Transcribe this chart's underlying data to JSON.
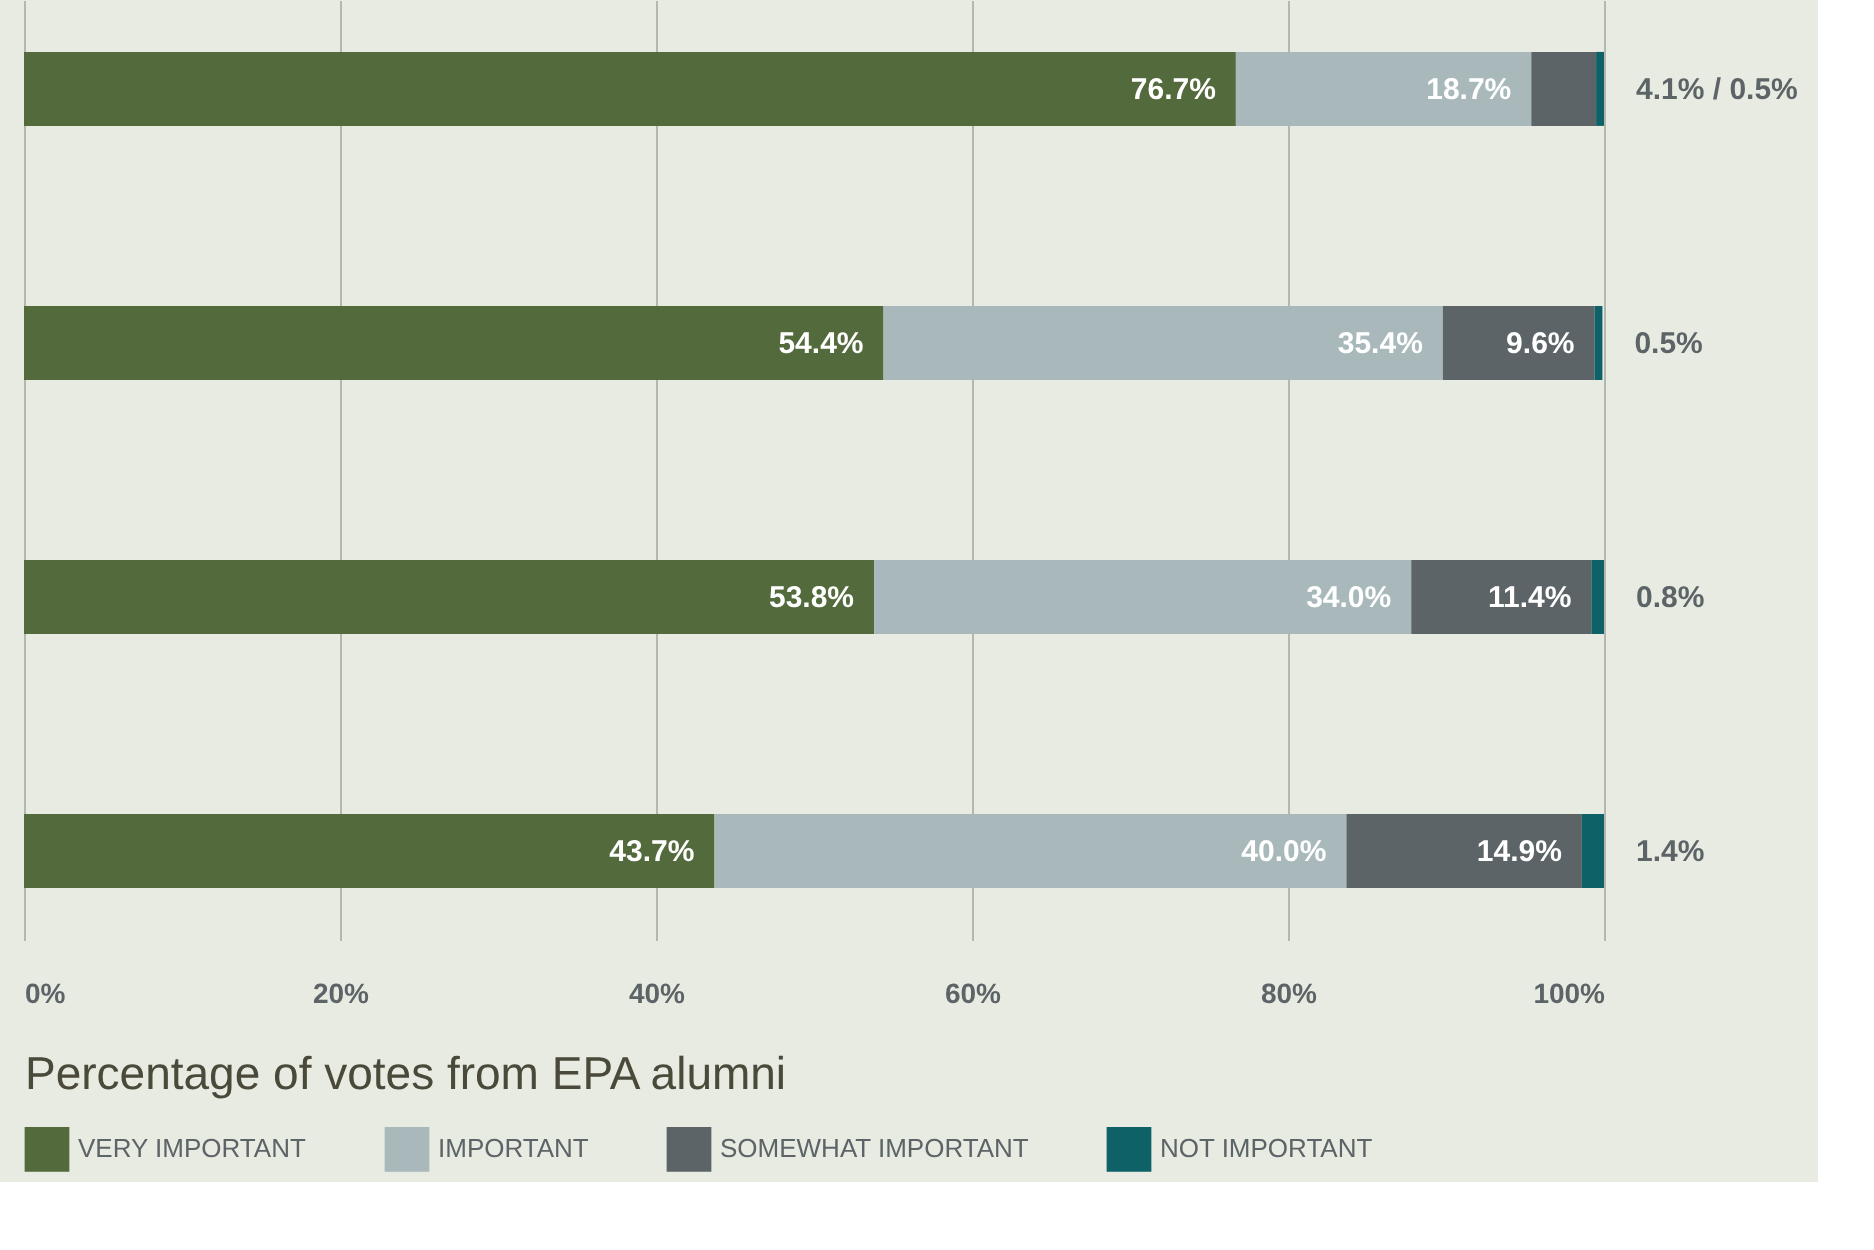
{
  "chart_data": {
    "type": "bar",
    "orientation": "horizontal",
    "stacked": true,
    "categories": [
      null,
      null,
      null,
      null
    ],
    "xlabel": "Percentage of votes from EPA alumni",
    "xlim": [
      0,
      100
    ],
    "xticks": [
      {
        "value": 0,
        "label": "0%"
      },
      {
        "value": 20,
        "label": "20%"
      },
      {
        "value": 40,
        "label": "40%"
      },
      {
        "value": 60,
        "label": "60%"
      },
      {
        "value": 80,
        "label": "80%"
      },
      {
        "value": 100,
        "label": "100%"
      }
    ],
    "grid": "x",
    "legend": "bottom",
    "series": [
      {
        "name": "VERY IMPORTANT",
        "color": "#526a3c",
        "values": [
          76.7,
          54.4,
          53.8,
          43.7
        ],
        "value_labels": [
          "76.7%",
          "54.4%",
          "53.8%",
          "43.7%"
        ]
      },
      {
        "name": "IMPORTANT",
        "color": "#a9b9bb",
        "values": [
          18.7,
          35.4,
          34.0,
          40.0
        ],
        "value_labels": [
          "18.7%",
          "35.4%",
          "34.0%",
          "40.0%"
        ]
      },
      {
        "name": "SOMEWHAT IMPORTANT",
        "color": "#5c6467",
        "values": [
          4.1,
          9.6,
          11.4,
          14.9
        ],
        "value_labels": [
          null,
          "9.6%",
          "11.4%",
          "14.9%"
        ]
      },
      {
        "name": "NOT IMPORTANT",
        "color": "#0e6167",
        "values": [
          0.5,
          0.5,
          0.8,
          1.4
        ],
        "value_labels": [
          "4.1% / 0.5%",
          "0.5%",
          "0.8%",
          "1.4%"
        ]
      }
    ]
  }
}
